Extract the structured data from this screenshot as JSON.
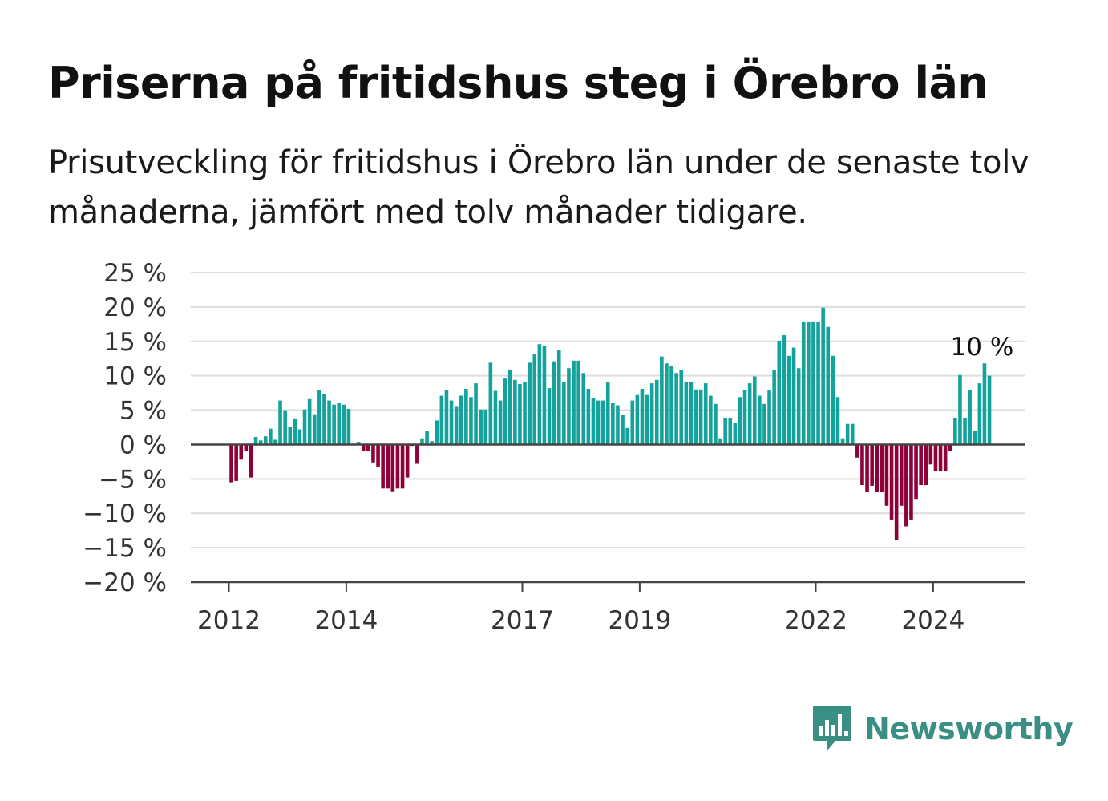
{
  "title": "Priserna på fritidshus steg i Örebro län",
  "subtitle": "Prisutveckling för fritidshus i Örebro län under de senaste tolv månaderna, jämfört med tolv månader tidigare.",
  "brand": {
    "name": "Newsworthy",
    "color": "#3a8f85",
    "icon": "bar-chart-speech-bubble-icon"
  },
  "chart_data": {
    "type": "bar",
    "xlabel": "",
    "ylabel": "",
    "ylim": [
      -20,
      25
    ],
    "x_start": "2012-01",
    "y_ticks": [
      {
        "value": 25,
        "label": "25 %"
      },
      {
        "value": 20,
        "label": "20 %"
      },
      {
        "value": 15,
        "label": "15 %"
      },
      {
        "value": 10,
        "label": "10 %"
      },
      {
        "value": 5,
        "label": "5 %"
      },
      {
        "value": 0,
        "label": "0 %"
      },
      {
        "value": -5,
        "label": "−5 %"
      },
      {
        "value": -10,
        "label": "−10 %"
      },
      {
        "value": -15,
        "label": "−15 %"
      },
      {
        "value": -20,
        "label": "−20 %"
      }
    ],
    "x_ticks": [
      {
        "year": 2012,
        "label": "2012"
      },
      {
        "year": 2014,
        "label": "2014"
      },
      {
        "year": 2017,
        "label": "2017"
      },
      {
        "year": 2019,
        "label": "2019"
      },
      {
        "year": 2022,
        "label": "2022"
      },
      {
        "year": 2024,
        "label": "2024"
      }
    ],
    "grid": true,
    "colors": {
      "positive": "#13a39c",
      "negative": "#8e0038",
      "grid": "#dddddd",
      "axis": "#444444"
    },
    "last_label": "10 %",
    "values": [
      -5.5,
      -5.3,
      -2.2,
      -0.9,
      -4.8,
      1.1,
      0.6,
      1.2,
      2.3,
      0.7,
      6.4,
      5.0,
      2.6,
      3.8,
      2.2,
      5.1,
      6.6,
      4.4,
      7.9,
      7.4,
      6.4,
      5.8,
      6.0,
      5.8,
      5.2,
      0.0,
      0.4,
      -0.9,
      -0.9,
      -2.6,
      -3.2,
      -6.4,
      -6.4,
      -6.8,
      -6.4,
      -6.4,
      -4.8,
      -0.2,
      -2.8,
      0.9,
      2.0,
      0.5,
      3.5,
      7.1,
      7.9,
      6.4,
      5.6,
      7.1,
      8.1,
      6.9,
      8.9,
      5.1,
      5.1,
      11.9,
      7.8,
      6.4,
      9.6,
      10.9,
      9.4,
      8.8,
      9.1,
      11.9,
      13.1,
      14.6,
      14.4,
      8.2,
      12.1,
      13.8,
      9.1,
      11.1,
      12.2,
      12.2,
      10.4,
      8.1,
      6.7,
      6.4,
      6.4,
      9.1,
      6.1,
      5.7,
      4.3,
      2.4,
      6.4,
      7.2,
      8.1,
      7.2,
      8.9,
      9.4,
      12.8,
      11.8,
      11.4,
      10.4,
      10.9,
      9.1,
      9.1,
      8.0,
      8.0,
      8.9,
      7.1,
      5.9,
      0.9,
      3.9,
      3.9,
      3.1,
      6.9,
      7.9,
      8.9,
      9.9,
      7.1,
      5.9,
      7.9,
      10.9,
      15.1,
      15.9,
      12.9,
      14.1,
      11.1,
      17.9,
      17.9,
      17.9,
      17.9,
      19.9,
      17.1,
      12.9,
      6.9,
      0.9,
      3.0,
      3.0,
      -1.9,
      -5.9,
      -6.9,
      -6.0,
      -6.9,
      -6.9,
      -8.9,
      -10.9,
      -13.9,
      -8.9,
      -11.9,
      -10.9,
      -7.9,
      -5.9,
      -5.9,
      -2.9,
      -3.9,
      -3.9,
      -3.9,
      -0.9,
      3.9,
      10.1,
      3.9,
      7.9,
      2.0,
      8.9,
      11.8,
      10.0
    ]
  }
}
